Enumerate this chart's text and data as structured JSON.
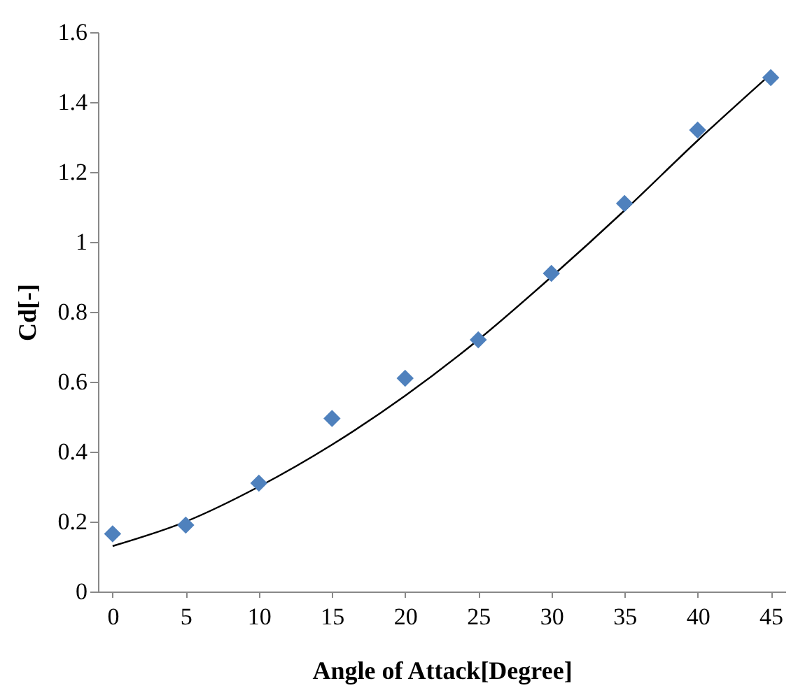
{
  "chart_data": {
    "type": "scatter",
    "xlabel": "Angle of Attack[Degree]",
    "ylabel": "Cd[-]",
    "xlim": [
      -1,
      46
    ],
    "ylim": [
      0,
      1.6
    ],
    "xticks": [
      0,
      5,
      10,
      15,
      20,
      25,
      30,
      35,
      40,
      45
    ],
    "yticks": [
      0,
      0.2,
      0.4,
      0.6,
      0.8,
      1,
      1.2,
      1.4,
      1.6
    ],
    "series": [
      {
        "type": "scatter",
        "color": "#4f81bd",
        "marker": "diamond",
        "x": [
          0,
          5,
          10,
          15,
          20,
          25,
          30,
          35,
          40,
          45
        ],
        "values": [
          0.165,
          0.19,
          0.31,
          0.495,
          0.61,
          0.72,
          0.91,
          1.11,
          1.32,
          1.47
        ]
      },
      {
        "type": "line",
        "color": "#000000",
        "marker": "none",
        "line_style": "solid",
        "x": [
          0,
          5,
          10,
          15,
          20,
          25,
          30,
          35,
          40,
          45
        ],
        "values": [
          0.13,
          0.2,
          0.3,
          0.42,
          0.56,
          0.72,
          0.9,
          1.09,
          1.29,
          1.48
        ]
      }
    ]
  }
}
